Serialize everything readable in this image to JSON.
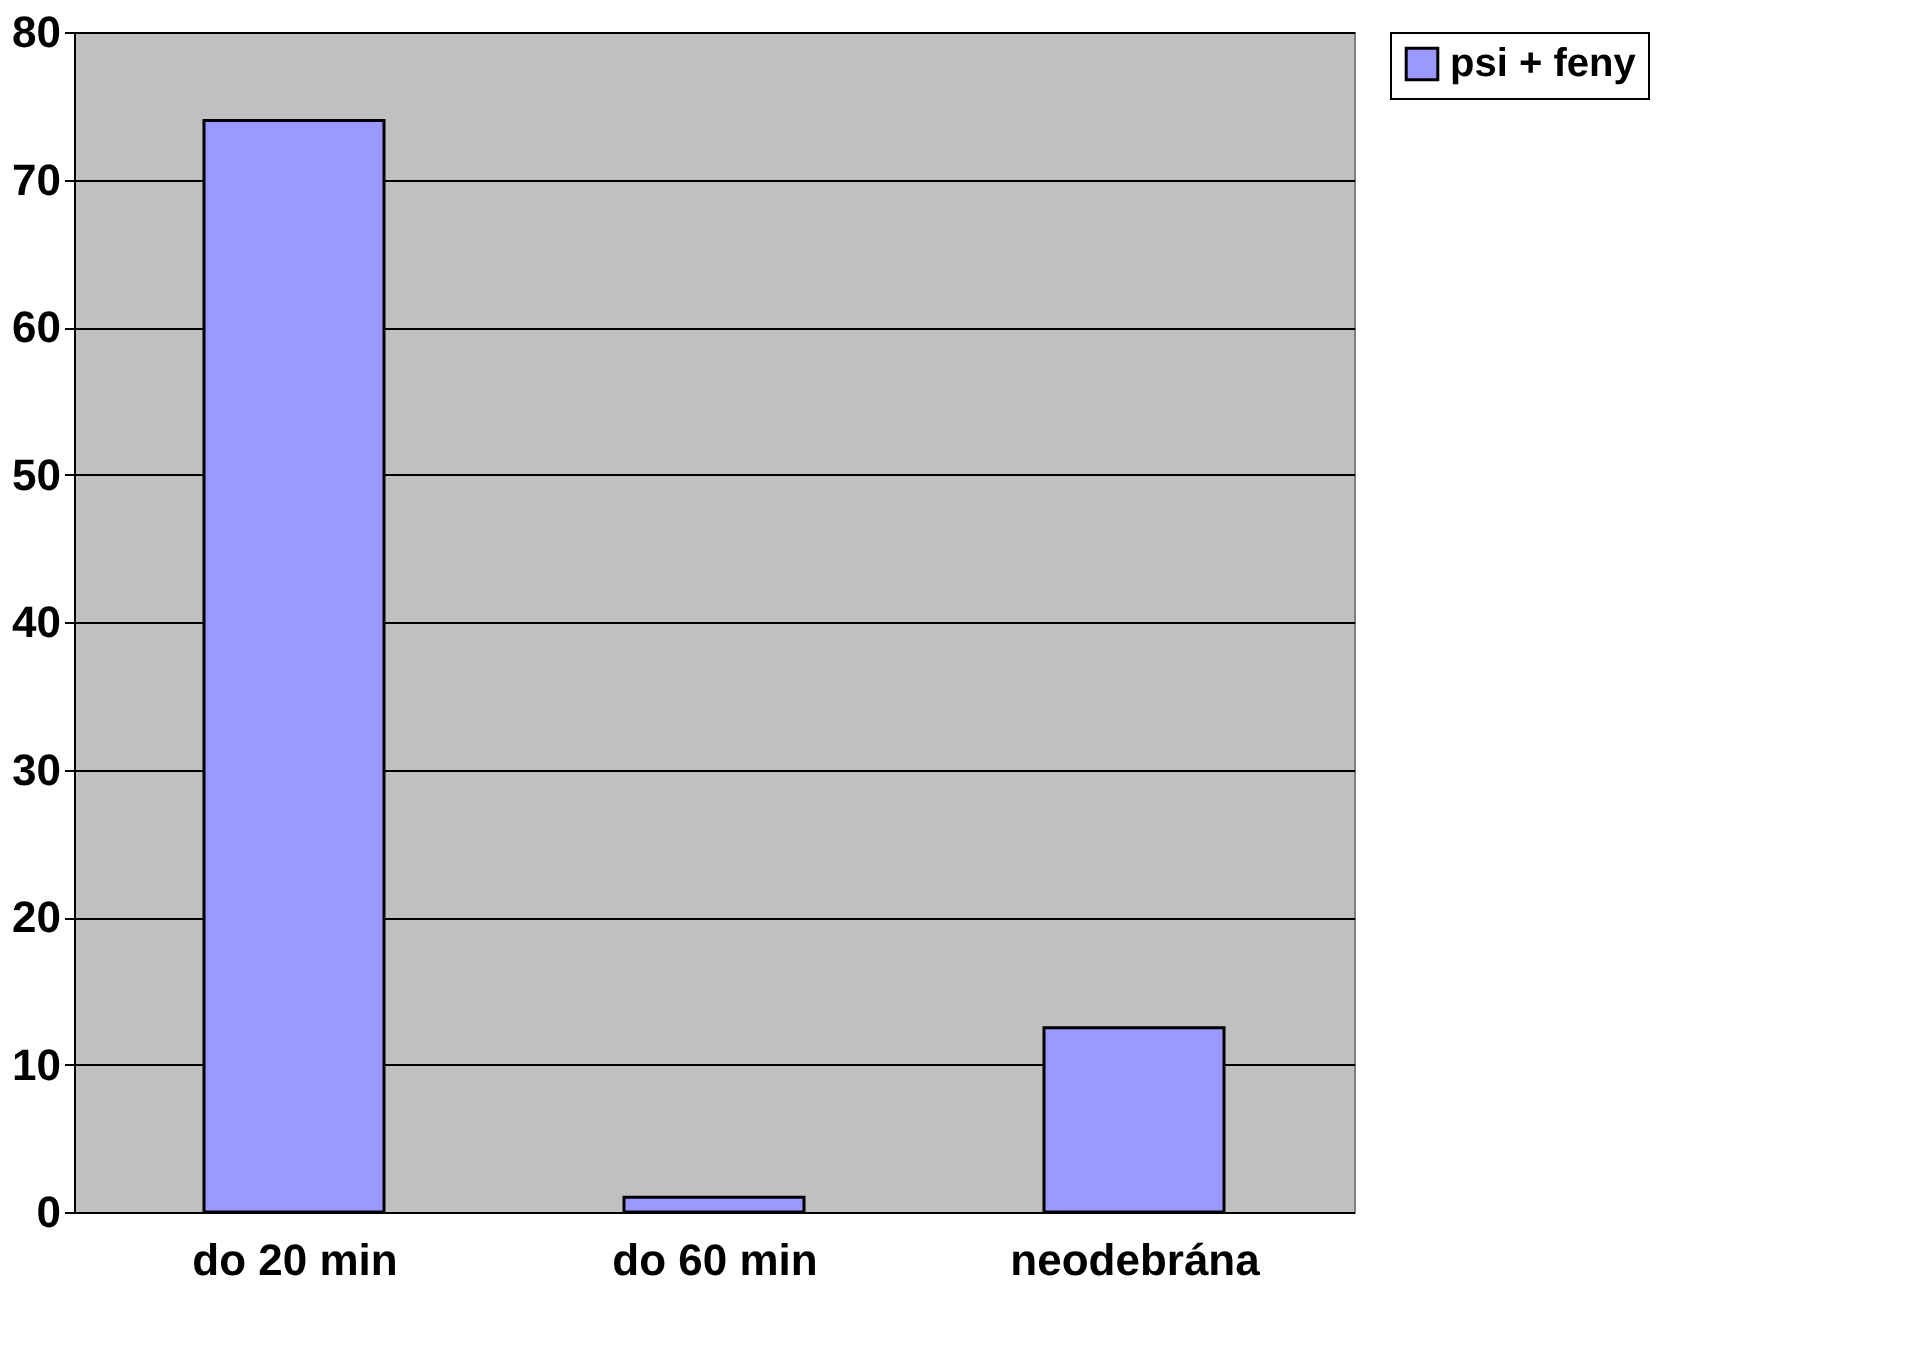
{
  "chart_data": {
    "type": "bar",
    "categories": [
      "do 20 min",
      "do 60 min",
      "neodebrána"
    ],
    "series": [
      {
        "name": "psi + feny",
        "color": "#9999ff",
        "values": [
          74,
          1,
          12.5
        ]
      }
    ],
    "ylim": [
      0,
      80
    ],
    "yticks": [
      0,
      10,
      20,
      30,
      40,
      50,
      60,
      70,
      80
    ],
    "grid": "y",
    "legend": "right"
  }
}
